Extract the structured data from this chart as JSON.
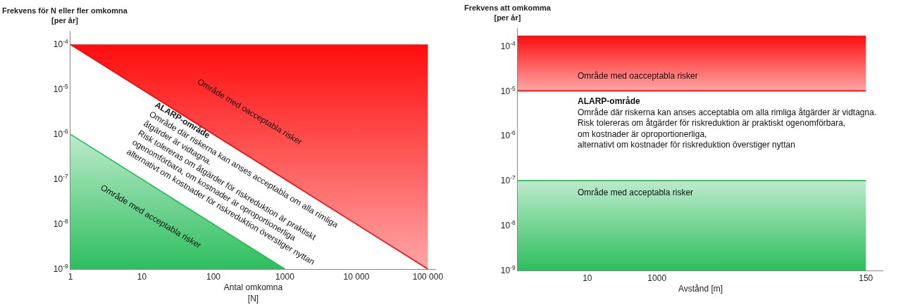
{
  "chart_data": [
    {
      "type": "line",
      "ylabel": "Frekvens för N eller fler omkomna\n[per år]",
      "xlabel": "Antal omkomna\n[N]",
      "log": "xy",
      "grid": false,
      "marker": "none",
      "line_style": "solid",
      "xlim": [
        1,
        130000
      ],
      "xticks": [
        1,
        10,
        100,
        1000,
        {
          "value": 10000,
          "label": "10 000"
        },
        {
          "value": 100000,
          "label": "100 000"
        }
      ],
      "ylim": [
        1e-09,
        0.0002
      ],
      "yticks": [
        {
          "value": 1e-09,
          "label": "10$^{-9}$"
        },
        {
          "value": 1e-08,
          "label": "10$^{-8}$"
        },
        {
          "value": 1e-07,
          "label": "10$^{-7}$"
        },
        {
          "value": 1e-06,
          "label": "10$^{-6}$"
        },
        {
          "value": 1e-05,
          "label": "10$^{-5}$"
        },
        {
          "value": 0.0001,
          "label": "10$^{-4}$"
        }
      ],
      "series": [
        {
          "color": "#ff0000",
          "x": [
            1,
            100000
          ],
          "values": [
            0.0001,
            1e-09
          ],
          "lower": [
            0.0001,
            1e-09
          ],
          "upper": [
            0.0001,
            0.0001
          ]
        },
        {
          "type": "area",
          "color": "#22bb55",
          "x": [
            1,
            1000
          ],
          "values": [
            1e-06,
            1e-09
          ]
        }
      ],
      "annotations": [
        "Område med oacceptabla risker",
        "ALARP-område",
        "Område där riskerna kan anses acceptabla om alla rimliga",
        "åtgärder är vidtagna.",
        "Risk tolereras om åtgärder för riskreduktion är praktiskt",
        "ogenomförbara, om kostnader är oproportionerliga",
        "alternativt om kostnader för riskreduktion överstiger nyttan",
        "Område med acceptabla risker"
      ]
    },
    {
      "type": "line",
      "ylabel": "Frekvens att omkomma\n[per år]",
      "xlabel": "Avstånd [m]",
      "log": "y",
      "grid": false,
      "marker": "none",
      "line_style": "solid",
      "categories": [
        null,
        "10",
        "1000",
        null,
        null,
        "150"
      ],
      "ylim": [
        1e-09,
        0.00025
      ],
      "yticks": [
        {
          "value": 1e-09,
          "label": "10$^{-9}$"
        },
        {
          "value": 1e-08,
          "label": "10$^{-8}$"
        },
        {
          "value": 1e-07,
          "label": "10$^{-7}$"
        },
        {
          "value": 1e-06,
          "label": "10$^{-6}$"
        },
        {
          "value": 1e-05,
          "label": "10$^{-5}$"
        },
        {
          "value": 0.0001,
          "label": "10$^{-4}$"
        }
      ],
      "series": [
        {
          "color": "#ff0000",
          "values": [
            1e-05,
            1e-05,
            1e-05,
            1e-05,
            1e-05,
            1e-05
          ],
          "lower": [
            1e-05,
            1e-05,
            1e-05,
            1e-05,
            1e-05,
            1e-05
          ],
          "upper": [
            0.00017,
            0.00017,
            0.00017,
            0.00017,
            0.00017,
            0.00017
          ]
        },
        {
          "type": "area",
          "color": "#22bb55",
          "values": [
            1e-07,
            1e-07,
            1e-07,
            1e-07,
            1e-07,
            1e-07
          ]
        }
      ],
      "annotations": [
        "Område med oacceptabla risker",
        "ALARP-område",
        "Område där riskerna kan anses acceptabla om alla rimliga åtgärder är vidtagna.",
        "Risk tolereras om åtgärder för riskreduktion är praktiskt ogenomförbara,",
        "om kostnader är oproportionerliga,",
        "alternativt om kostnader för riskreduktion överstiger nyttan",
        "Område med acceptabla risker"
      ]
    }
  ]
}
